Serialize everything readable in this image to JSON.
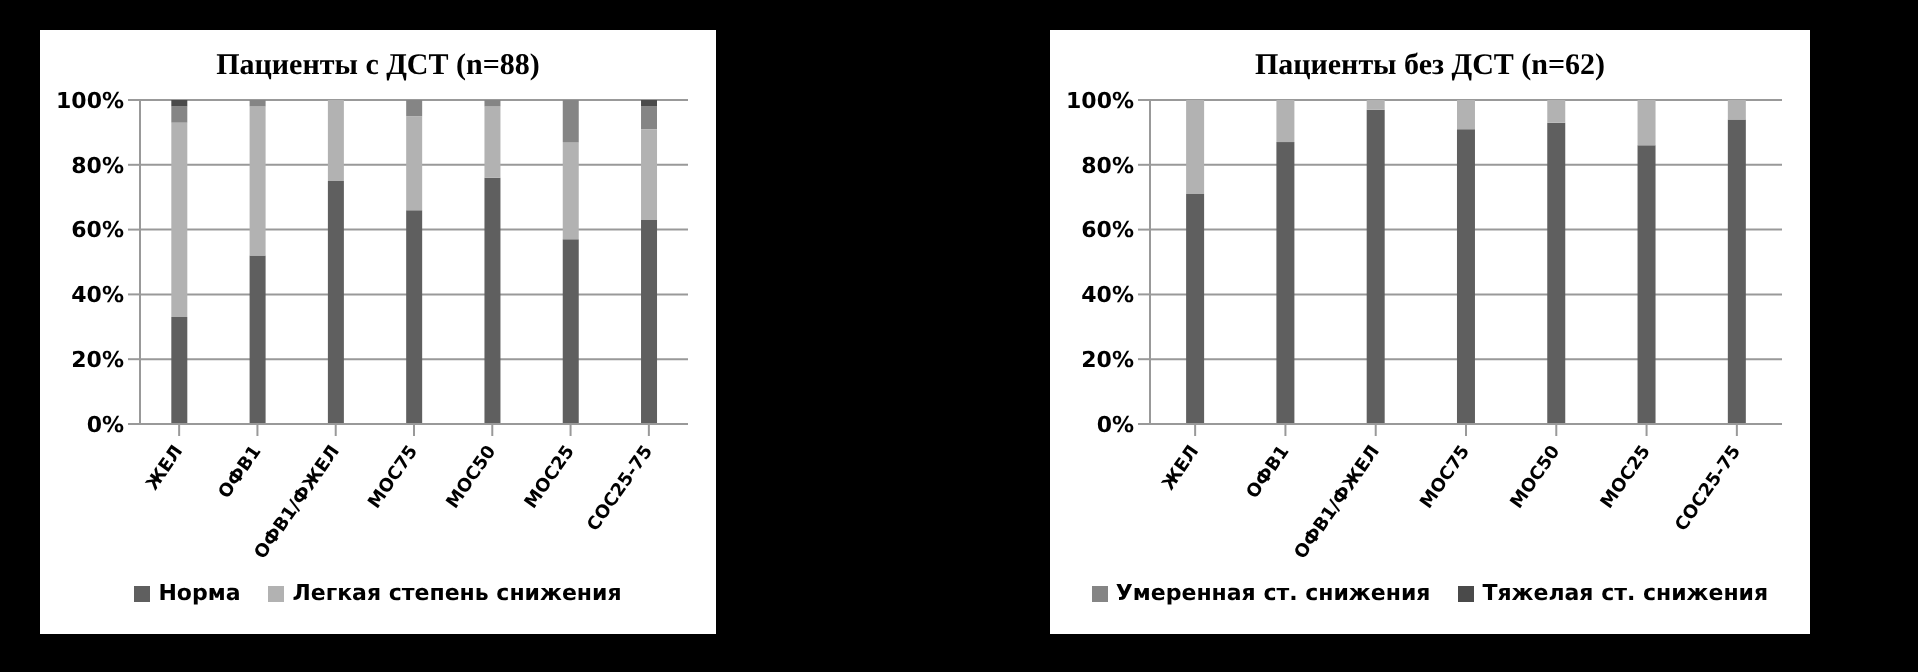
{
  "chart_data": [
    {
      "type": "bar",
      "title": "Пациенты с ДСТ (n=88)",
      "stacked": true,
      "categories": [
        "ЖЕЛ",
        "ОФВ1",
        "ОФВ1/ФЖЕЛ",
        "МОС75",
        "МОС50",
        "МОС25",
        "СОС25-75"
      ],
      "ylim": [
        0,
        100
      ],
      "yticks": [
        {
          "value": 0,
          "label": "0%"
        },
        {
          "value": 20,
          "label": "20%"
        },
        {
          "value": 40,
          "label": "40%"
        },
        {
          "value": 60,
          "label": "60%"
        },
        {
          "value": 80,
          "label": "80%"
        },
        {
          "value": 100,
          "label": "100%"
        }
      ],
      "grid": "y",
      "legend": "bottom",
      "series": [
        {
          "name": "Норма",
          "color": "#5f5f5f",
          "values": [
            33,
            52,
            75,
            66,
            76,
            57,
            63
          ]
        },
        {
          "name": "Легкая степень снижения",
          "color": "#b2b2b2",
          "values": [
            60,
            46,
            25,
            29,
            22,
            30,
            28
          ]
        },
        {
          "color": "#858585",
          "values": [
            5,
            2,
            0,
            5,
            2,
            13,
            7
          ]
        },
        {
          "color": "#4a4a4a",
          "values": [
            2,
            0,
            0,
            0,
            0,
            0,
            2
          ]
        }
      ]
    },
    {
      "type": "bar",
      "title": "Пациенты без ДСТ (n=62)",
      "stacked": true,
      "categories": [
        "ЖЕЛ",
        "ОФВ1",
        "ОФВ1/ФЖЕЛ",
        "МОС75",
        "МОС50",
        "МОС25",
        "СОС25-75"
      ],
      "ylim": [
        0,
        100
      ],
      "yticks": [
        {
          "value": 0,
          "label": "0%"
        },
        {
          "value": 20,
          "label": "20%"
        },
        {
          "value": 40,
          "label": "40%"
        },
        {
          "value": 60,
          "label": "60%"
        },
        {
          "value": 80,
          "label": "80%"
        },
        {
          "value": 100,
          "label": "100%"
        }
      ],
      "grid": "y",
      "legend": "bottom",
      "series": [
        {
          "color": "#5f5f5f",
          "values": [
            71,
            87,
            97,
            91,
            93,
            86,
            94
          ]
        },
        {
          "color": "#b2b2b2",
          "values": [
            29,
            13,
            3,
            9,
            7,
            14,
            6
          ]
        },
        {
          "name": "Умеренная ст. снижения",
          "color": "#858585",
          "values": [
            0,
            0,
            0,
            0,
            0,
            0,
            0
          ]
        },
        {
          "name": "Тяжелая ст. снижения",
          "color": "#4a4a4a",
          "values": [
            0,
            0,
            0,
            0,
            0,
            0,
            0
          ]
        }
      ]
    }
  ]
}
